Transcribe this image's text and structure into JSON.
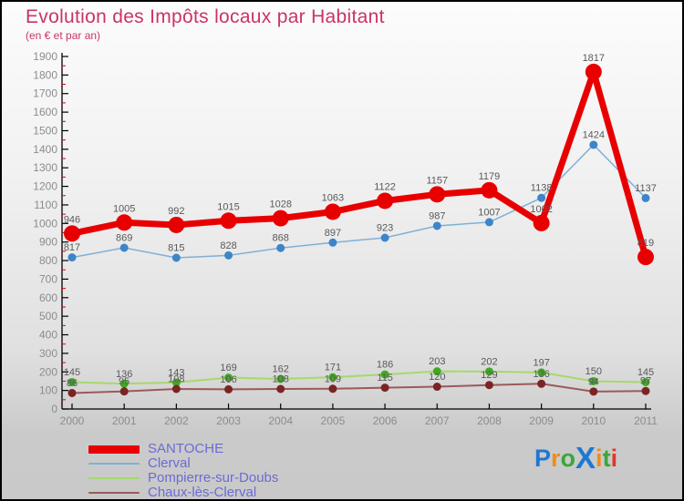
{
  "chart_data": {
    "type": "line",
    "title": "Evolution des Impôts locaux par Habitant",
    "subtitle": "(en € et par an)",
    "title_color": "#cb3368",
    "x": [
      "2000",
      "2001",
      "2002",
      "2003",
      "2004",
      "2005",
      "2006",
      "2007",
      "2008",
      "2009",
      "2010",
      "2011"
    ],
    "series": [
      {
        "name": "SANTOCHE",
        "color": "#e80000",
        "marker_color": "#e80000",
        "line_width": 7,
        "marker_radius": 9,
        "values": [
          946,
          1005,
          992,
          1015,
          1028,
          1063,
          1122,
          1157,
          1179,
          1002,
          1817,
          819
        ]
      },
      {
        "name": "Clerval",
        "color": "#7fb0d6",
        "marker_color": "#3d85c8",
        "line_width": 1.5,
        "marker_radius": 4.5,
        "values": [
          817,
          869,
          815,
          828,
          868,
          897,
          923,
          987,
          1007,
          1138,
          1424,
          1137
        ]
      },
      {
        "name": "Pompierre-sur-Doubs",
        "color": "#a6d96a",
        "marker_color": "#3faa21",
        "line_width": 2,
        "marker_radius": 4.5,
        "values": [
          145,
          136,
          143,
          169,
          162,
          171,
          186,
          203,
          202,
          197,
          150,
          145
        ]
      },
      {
        "name": "Chaux-lès-Clerval",
        "color": "#9b5a5a",
        "marker_color": "#7b2424",
        "line_width": 2,
        "marker_radius": 4.5,
        "values": [
          86,
          95,
          108,
          106,
          108,
          109,
          115,
          120,
          129,
          136,
          94,
          97
        ]
      }
    ],
    "ylim": [
      0,
      1900
    ],
    "ytick_step": 100,
    "yminor_step": 50,
    "yminor_color": "#e00000",
    "grid": false,
    "legend_position": "bottom-left"
  },
  "logo": {
    "name": "Proxiti",
    "letters": [
      {
        "ch": "P",
        "color": "#1e78d2",
        "big": false
      },
      {
        "ch": "r",
        "color": "#f08c1a",
        "big": false
      },
      {
        "ch": "o",
        "color": "#3aa63c",
        "big": false
      },
      {
        "ch": "X",
        "color": "#1e78d2",
        "big": true
      },
      {
        "ch": "i",
        "color": "#f08c1a",
        "big": false
      },
      {
        "ch": "t",
        "color": "#3aa63c",
        "big": false
      },
      {
        "ch": "i",
        "color": "#e03a28",
        "big": false
      }
    ]
  }
}
